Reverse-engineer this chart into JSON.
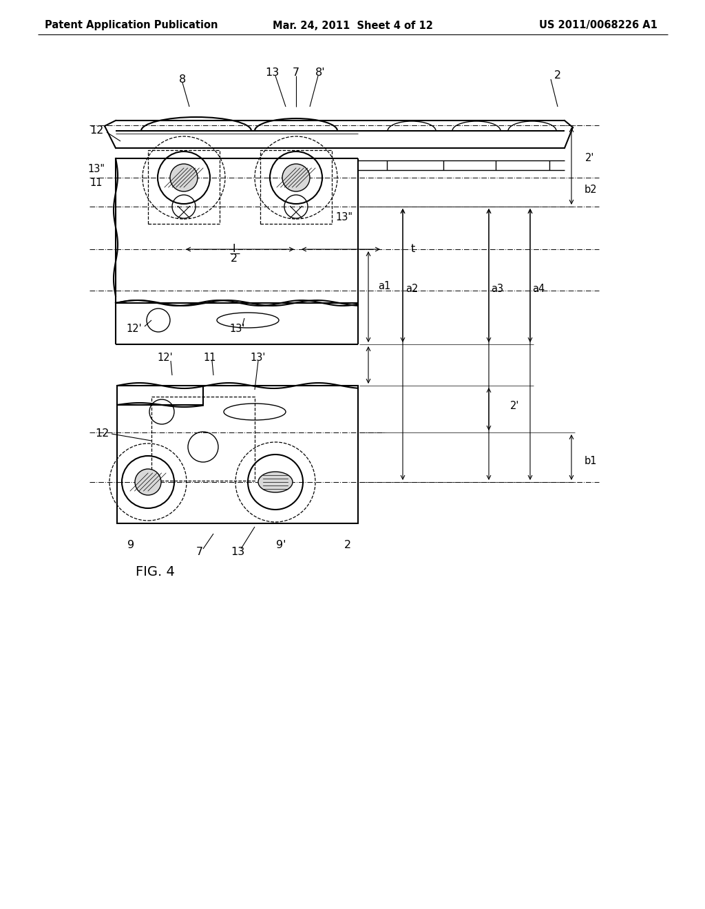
{
  "bg_color": "#ffffff",
  "line_color": "#000000",
  "header_left": "Patent Application Publication",
  "header_mid": "Mar. 24, 2011  Sheet 4 of 12",
  "header_right": "US 2011/0068226 A1",
  "fig_label": "FIG. 4",
  "header_fontsize": 10.5,
  "label_fontsize": 11.5
}
